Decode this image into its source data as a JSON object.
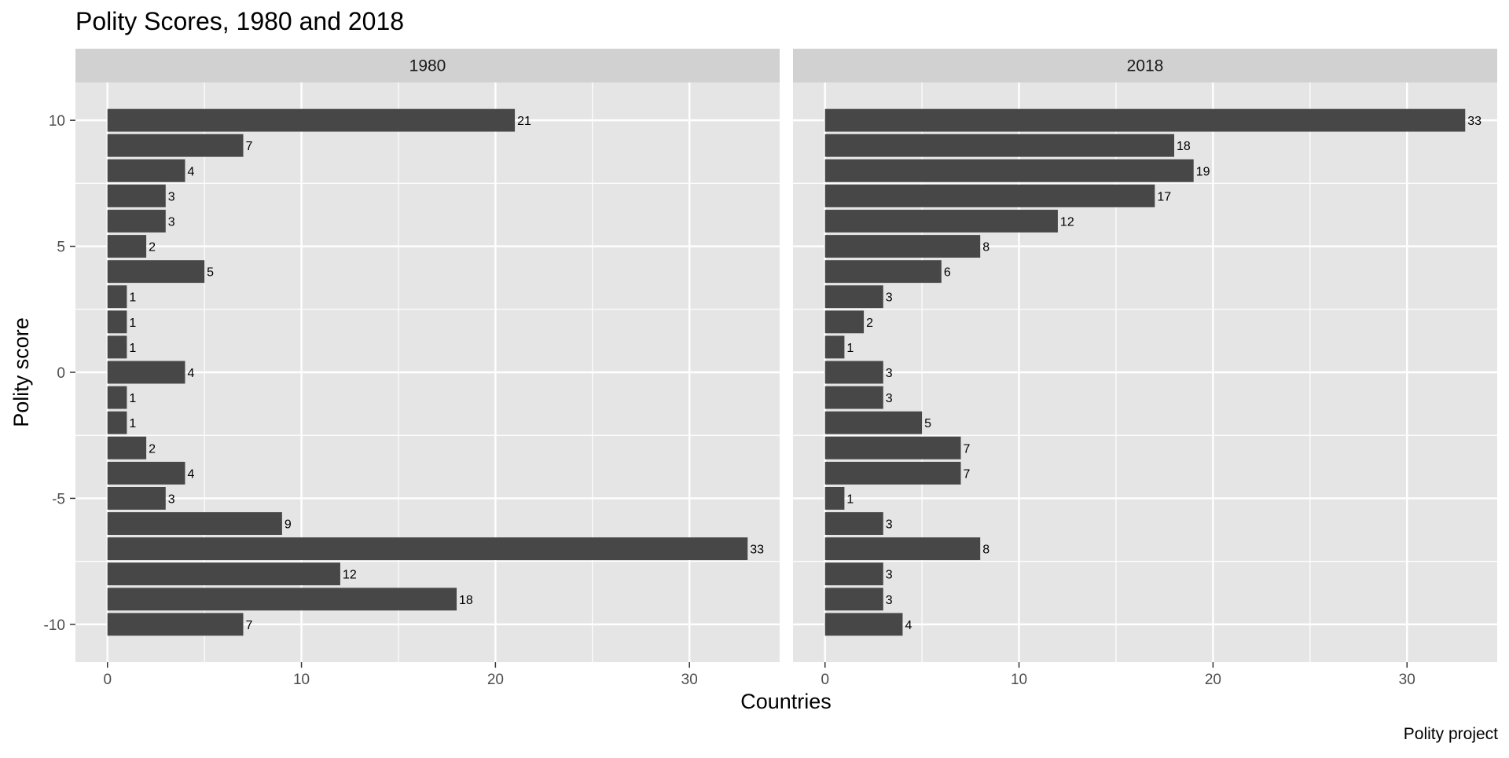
{
  "chart_data": {
    "type": "bar",
    "orientation": "horizontal",
    "title": "Polity Scores, 1980 and 2018",
    "xlabel": "Countries",
    "ylabel": "Polity score",
    "caption": "Polity project",
    "xlim": [
      -1.65,
      34.65
    ],
    "ylim": [
      -11.5,
      11.5
    ],
    "x_ticks": [
      0,
      10,
      20,
      30
    ],
    "y_ticks": [
      10,
      5,
      0,
      -5,
      -10
    ],
    "y_tick_labels": [
      "10",
      "5",
      "0",
      "-5",
      "-10"
    ],
    "grid": true,
    "bar_color": "#474747",
    "panel_bg": "#e5e5e5",
    "strip_bg": "#d1d1d1",
    "grid_color": "#ffffff",
    "categories": [
      10,
      9,
      8,
      7,
      6,
      5,
      4,
      3,
      2,
      1,
      0,
      -1,
      -2,
      -3,
      -4,
      -5,
      -6,
      -7,
      -8,
      -9,
      -10
    ],
    "panels": [
      {
        "label": "1980",
        "values": [
          21,
          7,
          4,
          3,
          3,
          2,
          5,
          1,
          1,
          1,
          4,
          1,
          1,
          2,
          4,
          3,
          9,
          33,
          12,
          18,
          7
        ]
      },
      {
        "label": "2018",
        "values": [
          33,
          18,
          19,
          17,
          12,
          8,
          6,
          3,
          2,
          1,
          3,
          3,
          5,
          7,
          7,
          1,
          3,
          8,
          3,
          3,
          4
        ]
      }
    ]
  }
}
